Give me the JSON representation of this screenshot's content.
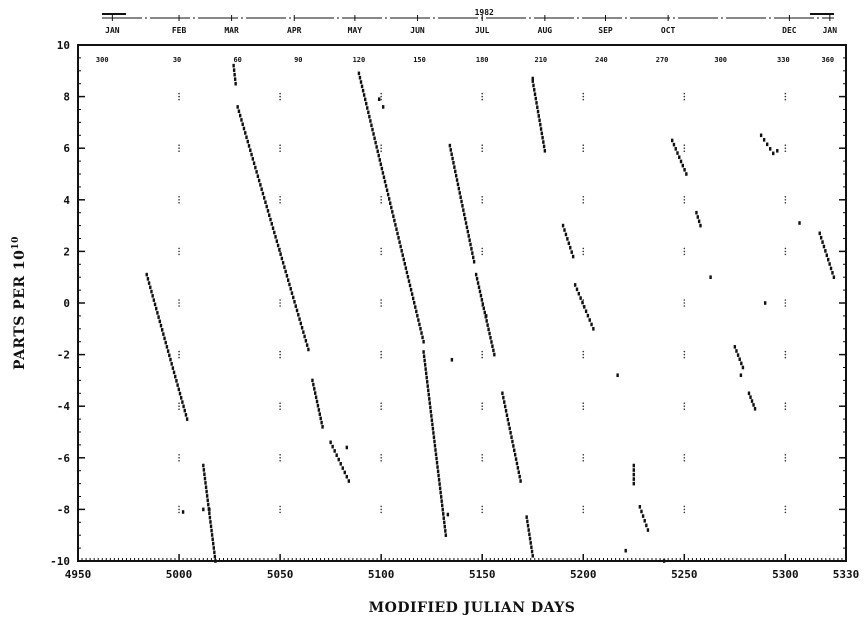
{
  "chart_data": {
    "type": "scatter",
    "title": "",
    "xlabel": "MODIFIED JULIAN DAYS",
    "ylabel": "PARTS PER 10",
    "ylabel_exponent": "10",
    "xlim": [
      4950,
      5330
    ],
    "ylim": [
      -10,
      10
    ],
    "x_ticks": [
      4950,
      5000,
      5050,
      5100,
      5150,
      5200,
      5250,
      5300,
      5330
    ],
    "x_tick_labels": [
      "4950",
      "5000",
      "5050",
      "5100",
      "5150",
      "5200",
      "5250",
      "5300",
      "5330"
    ],
    "y_ticks": [
      -10,
      -8,
      -6,
      -4,
      -2,
      0,
      2,
      4,
      6,
      8,
      10
    ],
    "y_tick_labels": [
      "-10",
      "-8",
      "-6",
      "-4",
      "-2",
      "0",
      "2",
      "4",
      "6",
      "8",
      "10"
    ],
    "grid": "dotted at major ticks",
    "top_axis": {
      "year_label": "1982",
      "year_at_mjd": 5150,
      "months": [
        {
          "label": "JAN",
          "mjd": 4967
        },
        {
          "label": "FEB",
          "mjd": 5000
        },
        {
          "label": "MAR",
          "mjd": 5026
        },
        {
          "label": "APR",
          "mjd": 5057
        },
        {
          "label": "MAY",
          "mjd": 5087
        },
        {
          "label": "JUN",
          "mjd": 5118
        },
        {
          "label": "JUL",
          "mjd": 5150
        },
        {
          "label": "AUG",
          "mjd": 5181
        },
        {
          "label": "SEP",
          "mjd": 5211
        },
        {
          "label": "OCT",
          "mjd": 5242
        },
        {
          "label": "DEC",
          "mjd": 5302
        },
        {
          "label": "JAN",
          "mjd": 5322
        }
      ],
      "day_of_year": [
        {
          "label": "300",
          "mjd": 4962
        },
        {
          "label": "30",
          "mjd": 4999
        },
        {
          "label": "60",
          "mjd": 5029
        },
        {
          "label": "90",
          "mjd": 5059
        },
        {
          "label": "120",
          "mjd": 5089
        },
        {
          "label": "150",
          "mjd": 5119
        },
        {
          "label": "180",
          "mjd": 5150
        },
        {
          "label": "210",
          "mjd": 5179
        },
        {
          "label": "240",
          "mjd": 5209
        },
        {
          "label": "270",
          "mjd": 5239
        },
        {
          "label": "300",
          "mjd": 5268
        },
        {
          "label": "330",
          "mjd": 5299
        },
        {
          "label": "360",
          "mjd": 5321
        }
      ]
    },
    "series": [
      {
        "segments": [
          {
            "x0": 4984,
            "y0": 1.1,
            "x1": 5004,
            "y1": -4.5
          },
          {
            "x0": 5012,
            "y0": -6.3,
            "x1": 5018,
            "y1": -10.0
          },
          {
            "x0": 5027,
            "y0": 9.2,
            "x1": 5028,
            "y1": 8.5
          },
          {
            "x0": 5029,
            "y0": 7.6,
            "x1": 5064,
            "y1": -1.8
          },
          {
            "x0": 5066,
            "y0": -3.0,
            "x1": 5071,
            "y1": -4.8
          },
          {
            "x0": 5075,
            "y0": -5.4,
            "x1": 5084,
            "y1": -6.9
          },
          {
            "x0": 5089,
            "y0": 8.9,
            "x1": 5121,
            "y1": -1.5
          },
          {
            "x0": 5121,
            "y0": -1.9,
            "x1": 5132,
            "y1": -9.0
          },
          {
            "x0": 5134,
            "y0": 6.1,
            "x1": 5146,
            "y1": 1.6
          },
          {
            "x0": 5147,
            "y0": 1.1,
            "x1": 5156,
            "y1": -2.0
          },
          {
            "x0": 5160,
            "y0": -3.5,
            "x1": 5169,
            "y1": -6.9
          },
          {
            "x0": 5172,
            "y0": -8.3,
            "x1": 5175,
            "y1": -9.8
          },
          {
            "x0": 5175,
            "y0": 8.6,
            "x1": 5181,
            "y1": 5.9
          },
          {
            "x0": 5190,
            "y0": 3.0,
            "x1": 5195,
            "y1": 1.8
          },
          {
            "x0": 5196,
            "y0": 0.7,
            "x1": 5205,
            "y1": -1.0
          },
          {
            "x0": 5225,
            "y0": -6.3,
            "x1": 5225,
            "y1": -7.0
          },
          {
            "x0": 5228,
            "y0": -7.9,
            "x1": 5232,
            "y1": -8.8
          },
          {
            "x0": 5244,
            "y0": 6.3,
            "x1": 5251,
            "y1": 5.0
          },
          {
            "x0": 5256,
            "y0": 3.5,
            "x1": 5258,
            "y1": 3.0
          },
          {
            "x0": 5275,
            "y0": -1.7,
            "x1": 5279,
            "y1": -2.5
          },
          {
            "x0": 5282,
            "y0": -3.5,
            "x1": 5285,
            "y1": -4.1
          },
          {
            "x0": 5288,
            "y0": 6.5,
            "x1": 5294,
            "y1": 5.8
          },
          {
            "x0": 5317,
            "y0": 2.7,
            "x1": 5324,
            "y1": 1.0
          }
        ]
      },
      {
        "points": [
          [
            5002,
            -8.1
          ],
          [
            5012,
            -8.0
          ],
          [
            5015,
            -8.0
          ],
          [
            5083,
            -5.6
          ],
          [
            5133,
            -8.2
          ],
          [
            5135,
            -2.2
          ],
          [
            5217,
            -2.8
          ],
          [
            5221,
            -9.6
          ],
          [
            5263,
            1.0
          ],
          [
            5278,
            -2.8
          ],
          [
            5290,
            0.0
          ],
          [
            5296,
            5.9
          ],
          [
            5307,
            3.1
          ],
          [
            5240,
            -10.0
          ],
          [
            5175,
            8.7
          ],
          [
            5099,
            7.9
          ],
          [
            5101,
            7.6
          ],
          [
            5152,
            -0.5
          ]
        ]
      }
    ]
  }
}
